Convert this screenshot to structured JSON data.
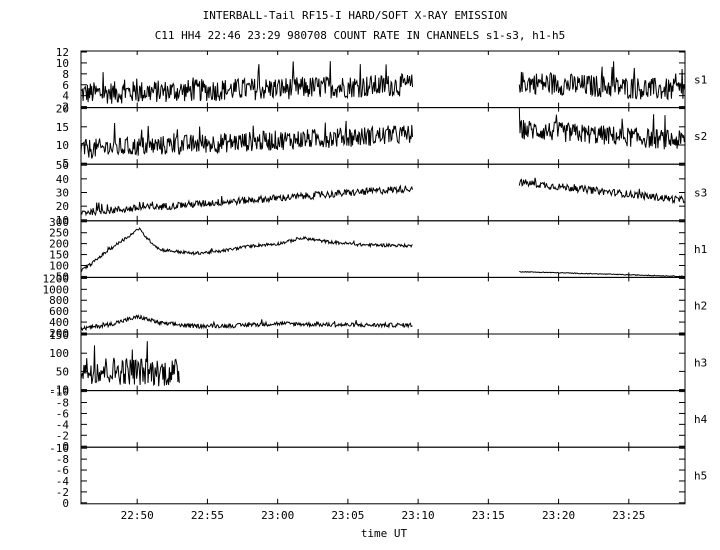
{
  "title_line1": "INTERBALL-Tail RF15-I HARD/SOFT X-RAY EMISSION",
  "title_line2": "C11 HH4 22:46 23:29 980708  COUNT RATE IN CHANNELS s1-s3, h1-h5",
  "chart_data": {
    "type": "line",
    "xlabel": "time UT",
    "x_range": [
      "22:46",
      "23:29"
    ],
    "x_ticks": [
      "22:50",
      "22:55",
      "23:00",
      "23:05",
      "23:10",
      "23:15",
      "23:20",
      "23:25"
    ],
    "data_gap": [
      "23:09.6",
      "23:17.2"
    ],
    "grid": false,
    "panels": [
      {
        "name": "s1",
        "ylim": [
          2,
          12
        ],
        "yticks": [
          "2",
          "4",
          "6",
          "8",
          "10",
          "12"
        ],
        "segments": [
          {
            "t_start": "22:46",
            "t_end": "23:09.6",
            "level_start": 4.5,
            "level_end": 6.0,
            "noise": 2.0
          },
          {
            "t_start": "23:17.2",
            "t_end": "23:29",
            "level_start": 6.5,
            "level_end": 5.0,
            "noise": 2.0
          }
        ]
      },
      {
        "name": "s2",
        "ylim": [
          3,
          20
        ],
        "yticks": [
          "5",
          "10",
          "15",
          "20"
        ],
        "segments": [
          {
            "t_start": "22:46",
            "t_end": "23:09.6",
            "level_start": 7.5,
            "level_end": 12.0,
            "noise": 3.0
          },
          {
            "t_start": "23:17.2",
            "t_end": "23:29",
            "level_start": 13.5,
            "level_end": 10.0,
            "noise": 3.0
          }
        ]
      },
      {
        "name": "s3",
        "ylim": [
          8,
          55
        ],
        "yticks": [
          "10",
          "20",
          "30",
          "40",
          "50"
        ],
        "segments": [
          {
            "t_start": "22:46",
            "t_end": "23:09.6",
            "level_start": 15,
            "level_end": 35,
            "noise": 3.0
          },
          {
            "t_start": "23:17.2",
            "t_end": "23:29",
            "level_start": 40,
            "level_end": 25,
            "noise": 3.0
          }
        ]
      },
      {
        "name": "h1",
        "ylim": [
          25,
          320
        ],
        "yticks": [
          "50",
          "100",
          "150",
          "200",
          "250",
          "300"
        ],
        "segments": [
          {
            "t_start": "22:46",
            "t_end": "23:09.6",
            "level_start": 60,
            "level_end": 190,
            "noise": 8,
            "profile": [
              [
                22.767,
                60
              ],
              [
                22.78,
                100
              ],
              [
                22.8,
                170
              ],
              [
                22.83,
                260
              ],
              [
                22.835,
                280
              ],
              [
                22.845,
                230
              ],
              [
                22.86,
                170
              ],
              [
                22.9,
                150
              ],
              [
                22.93,
                160
              ],
              [
                22.97,
                190
              ],
              [
                23.0,
                200
              ],
              [
                23.03,
                230
              ],
              [
                23.06,
                210
              ],
              [
                23.1,
                195
              ],
              [
                23.16,
                190
              ]
            ]
          },
          {
            "t_start": "23:17.2",
            "t_end": "23:29",
            "level_start": 55,
            "level_end": 30,
            "noise": 2
          }
        ]
      },
      {
        "name": "h2",
        "ylim": [
          120,
          1200
        ],
        "yticks": [
          "200",
          "400",
          "600",
          "800",
          "1000",
          "1200"
        ],
        "segments": [
          {
            "t_start": "22:46",
            "t_end": "23:09.6",
            "level_start": 230,
            "level_end": 290,
            "noise": 40,
            "profile": [
              [
                22.767,
                220
              ],
              [
                22.8,
                300
              ],
              [
                22.835,
                450
              ],
              [
                22.86,
                330
              ],
              [
                22.9,
                270
              ],
              [
                22.95,
                280
              ],
              [
                23.0,
                320
              ],
              [
                23.05,
                300
              ],
              [
                23.1,
                290
              ],
              [
                23.16,
                290
              ]
            ]
          }
        ]
      },
      {
        "name": "h3",
        "ylim": [
          -10,
          150
        ],
        "yticks": [
          "-10",
          "50",
          "100",
          "150"
        ],
        "segments": [
          {
            "t_start": "22:46",
            "t_end": "22:53",
            "level_start": 50,
            "level_end": 40,
            "noise": 40
          }
        ]
      },
      {
        "name": "h4",
        "ylim": [
          0,
          10
        ],
        "yticks": [
          "0",
          "-2",
          "-4",
          "-6",
          "-8",
          "-10"
        ],
        "segments": []
      },
      {
        "name": "h5",
        "ylim": [
          0,
          10
        ],
        "yticks": [
          "0",
          "-2",
          "-4",
          "-6",
          "-8",
          "-10"
        ],
        "segments": []
      }
    ]
  }
}
